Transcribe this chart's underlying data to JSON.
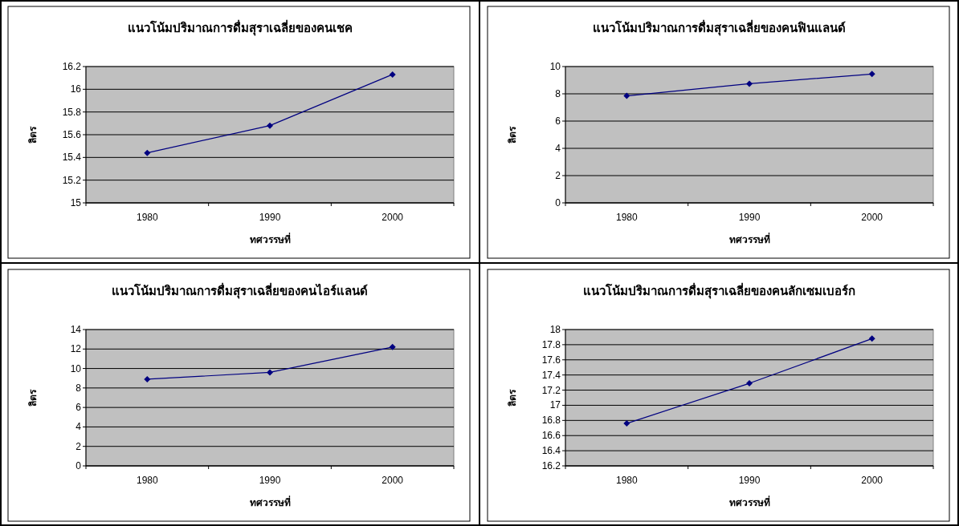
{
  "chart_data": [
    {
      "type": "line",
      "title": "แนวโน้มปริมาณการดื่มสุราเฉลี่ยของคนเชค",
      "xlabel": "ทศวรรษที่",
      "ylabel": "ลิตร",
      "categories": [
        "1980",
        "1990",
        "2000"
      ],
      "series": [
        {
          "color": "#000080",
          "values": [
            15.44,
            15.68,
            16.13
          ]
        }
      ],
      "ylim": [
        15,
        16.2
      ],
      "yticks": [
        15,
        15.2,
        15.4,
        15.6,
        15.8,
        16,
        16.2
      ],
      "grid": "y",
      "marker": "diamond",
      "line_style": "solid"
    },
    {
      "type": "line",
      "title": "แนวโน้มปริมาณการดื่มสุราเฉลี่ยของคนฟินแลนด์",
      "xlabel": "ทศวรรษที่",
      "ylabel": "ลิตร",
      "categories": [
        "1980",
        "1990",
        "2000"
      ],
      "series": [
        {
          "color": "#000080",
          "values": [
            7.85,
            8.74,
            9.45
          ]
        }
      ],
      "ylim": [
        0,
        10
      ],
      "yticks": [
        0,
        2,
        4,
        6,
        8,
        10
      ],
      "grid": "y",
      "marker": "diamond",
      "line_style": "solid"
    },
    {
      "type": "line",
      "title": "แนวโน้มปริมาณการดื่มสุราเฉลี่ยของคนไอร์แลนด์",
      "xlabel": "ทศวรรษที่",
      "ylabel": "ลิตร",
      "categories": [
        "1980",
        "1990",
        "2000"
      ],
      "series": [
        {
          "color": "#000080",
          "values": [
            8.9,
            9.6,
            12.2
          ]
        }
      ],
      "ylim": [
        0,
        14
      ],
      "yticks": [
        0,
        2,
        4,
        6,
        8,
        10,
        12,
        14
      ],
      "grid": "y",
      "marker": "diamond",
      "line_style": "solid"
    },
    {
      "type": "line",
      "title": "แนวโน้มปริมาณการดื่มสุราเฉลี่ยของคนลักเซมเบอร์ก",
      "xlabel": "ทศวรรษที่",
      "ylabel": "ลิตร",
      "categories": [
        "1980",
        "1990",
        "2000"
      ],
      "series": [
        {
          "color": "#000080",
          "values": [
            16.76,
            17.29,
            17.88
          ]
        }
      ],
      "ylim": [
        16.2,
        18
      ],
      "yticks": [
        16.2,
        16.4,
        16.6,
        16.8,
        17,
        17.2,
        17.4,
        17.6,
        17.8,
        18
      ],
      "grid": "y",
      "marker": "diamond",
      "line_style": "solid"
    }
  ]
}
